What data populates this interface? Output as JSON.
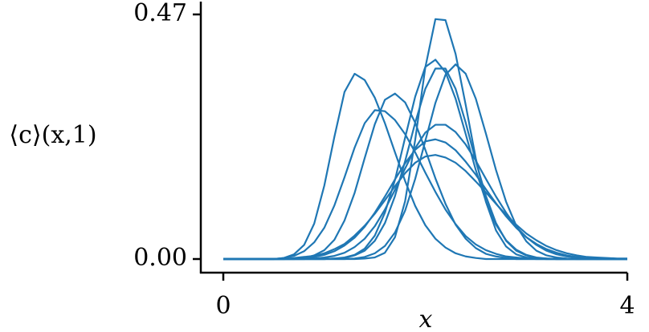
{
  "chart_data": {
    "type": "line",
    "x_label": "x",
    "y_label": "⟨c⟩(x,1)",
    "x": [
      0,
      0.1,
      0.2,
      0.3,
      0.4,
      0.5,
      0.6,
      0.7,
      0.8,
      0.9,
      1.0,
      1.1,
      1.2,
      1.3,
      1.4,
      1.5,
      1.6,
      1.7,
      1.8,
      1.9,
      2.0,
      2.1,
      2.2,
      2.3,
      2.4,
      2.5,
      2.6,
      2.7,
      2.8,
      2.9,
      3.0,
      3.1,
      3.2,
      3.3,
      3.4,
      3.5,
      3.6,
      3.7,
      3.8,
      3.9,
      4.0
    ],
    "series": [
      {
        "color": "#1f77b4",
        "values": [
          0,
          0,
          0,
          0,
          0,
          0,
          0.002,
          0.009,
          0.027,
          0.068,
          0.141,
          0.235,
          0.321,
          0.356,
          0.344,
          0.31,
          0.261,
          0.205,
          0.15,
          0.102,
          0.065,
          0.039,
          0.022,
          0.011,
          0.005,
          0.002,
          0,
          0,
          0,
          0,
          0,
          0,
          0,
          0,
          0,
          0,
          0,
          0,
          0,
          0,
          0
        ]
      },
      {
        "color": "#1f77b4",
        "values": [
          0,
          0,
          0,
          0,
          0,
          0,
          0.002,
          0.006,
          0.015,
          0.032,
          0.06,
          0.103,
          0.157,
          0.214,
          0.261,
          0.286,
          0.284,
          0.267,
          0.24,
          0.205,
          0.166,
          0.129,
          0.095,
          0.067,
          0.044,
          0.028,
          0.017,
          0.01,
          0.005,
          0.003,
          0.001,
          0,
          0,
          0,
          0,
          0,
          0,
          0,
          0,
          0,
          0
        ]
      },
      {
        "color": "#1f77b4",
        "values": [
          0,
          0,
          0,
          0,
          0,
          0,
          0,
          0.001,
          0.002,
          0.007,
          0.017,
          0.037,
          0.074,
          0.127,
          0.194,
          0.259,
          0.306,
          0.318,
          0.301,
          0.262,
          0.21,
          0.155,
          0.106,
          0.066,
          0.039,
          0.021,
          0.01,
          0.005,
          0.002,
          0,
          0,
          0,
          0,
          0,
          0,
          0,
          0,
          0,
          0,
          0,
          0
        ]
      },
      {
        "color": "#1f77b4",
        "values": [
          0,
          0,
          0,
          0,
          0,
          0,
          0,
          0,
          0,
          0,
          0,
          0,
          0,
          0,
          0.001,
          0.003,
          0.012,
          0.042,
          0.111,
          0.229,
          0.368,
          0.461,
          0.459,
          0.394,
          0.296,
          0.193,
          0.11,
          0.055,
          0.024,
          0.009,
          0.003,
          0.001,
          0,
          0,
          0,
          0,
          0,
          0,
          0,
          0,
          0
        ]
      },
      {
        "color": "#1f77b4",
        "values": [
          0,
          0,
          0,
          0,
          0,
          0,
          0,
          0,
          0,
          0,
          0,
          0.001,
          0.003,
          0.008,
          0.02,
          0.045,
          0.089,
          0.152,
          0.233,
          0.312,
          0.369,
          0.383,
          0.359,
          0.308,
          0.24,
          0.171,
          0.111,
          0.066,
          0.036,
          0.018,
          0.008,
          0.003,
          0.001,
          0,
          0,
          0,
          0,
          0,
          0,
          0,
          0
        ]
      },
      {
        "color": "#1f77b4",
        "values": [
          0,
          0,
          0,
          0,
          0,
          0,
          0,
          0,
          0,
          0,
          0,
          0.001,
          0.002,
          0.007,
          0.016,
          0.035,
          0.069,
          0.121,
          0.188,
          0.262,
          0.327,
          0.366,
          0.366,
          0.327,
          0.262,
          0.188,
          0.121,
          0.069,
          0.035,
          0.016,
          0.007,
          0.002,
          0.001,
          0,
          0,
          0,
          0,
          0,
          0,
          0,
          0
        ]
      },
      {
        "color": "#1f77b4",
        "values": [
          0,
          0,
          0,
          0,
          0,
          0,
          0,
          0,
          0,
          0,
          0,
          0,
          0,
          0.001,
          0.004,
          0.011,
          0.025,
          0.051,
          0.093,
          0.154,
          0.227,
          0.3,
          0.354,
          0.374,
          0.356,
          0.308,
          0.241,
          0.171,
          0.11,
          0.064,
          0.034,
          0.016,
          0.007,
          0.003,
          0.001,
          0,
          0,
          0,
          0,
          0,
          0
        ]
      },
      {
        "color": "#1f77b4",
        "values": [
          0,
          0,
          0,
          0,
          0,
          0,
          0,
          0,
          0,
          0.001,
          0.003,
          0.006,
          0.012,
          0.023,
          0.039,
          0.063,
          0.095,
          0.133,
          0.174,
          0.213,
          0.243,
          0.258,
          0.258,
          0.244,
          0.22,
          0.189,
          0.154,
          0.12,
          0.089,
          0.062,
          0.042,
          0.027,
          0.016,
          0.009,
          0.005,
          0.003,
          0.001,
          0,
          0,
          0,
          0
        ]
      },
      {
        "color": "#1f77b4",
        "values": [
          0,
          0,
          0,
          0,
          0,
          0,
          0,
          0,
          0.002,
          0.004,
          0.008,
          0.015,
          0.026,
          0.041,
          0.062,
          0.089,
          0.12,
          0.153,
          0.184,
          0.21,
          0.226,
          0.23,
          0.224,
          0.209,
          0.187,
          0.162,
          0.134,
          0.107,
          0.082,
          0.06,
          0.042,
          0.029,
          0.019,
          0.012,
          0.007,
          0.004,
          0.002,
          0.001,
          0,
          0,
          0
        ]
      },
      {
        "color": "#1f77b4",
        "values": [
          0,
          0,
          0,
          0,
          0,
          0,
          0,
          0.002,
          0.004,
          0.006,
          0.011,
          0.019,
          0.029,
          0.045,
          0.064,
          0.087,
          0.113,
          0.14,
          0.165,
          0.185,
          0.197,
          0.2,
          0.195,
          0.185,
          0.169,
          0.149,
          0.128,
          0.106,
          0.085,
          0.066,
          0.049,
          0.036,
          0.025,
          0.017,
          0.011,
          0.007,
          0.004,
          0.003,
          0.002,
          0.001,
          0.001
        ]
      }
    ],
    "xlim": [
      0,
      4
    ],
    "xticks": [
      0,
      4
    ],
    "ylim": [
      0,
      0.47
    ],
    "yticks": [
      {
        "value": 0,
        "label": "0.00"
      },
      {
        "value": 0.47,
        "label": "0.47"
      }
    ],
    "grid": false
  }
}
